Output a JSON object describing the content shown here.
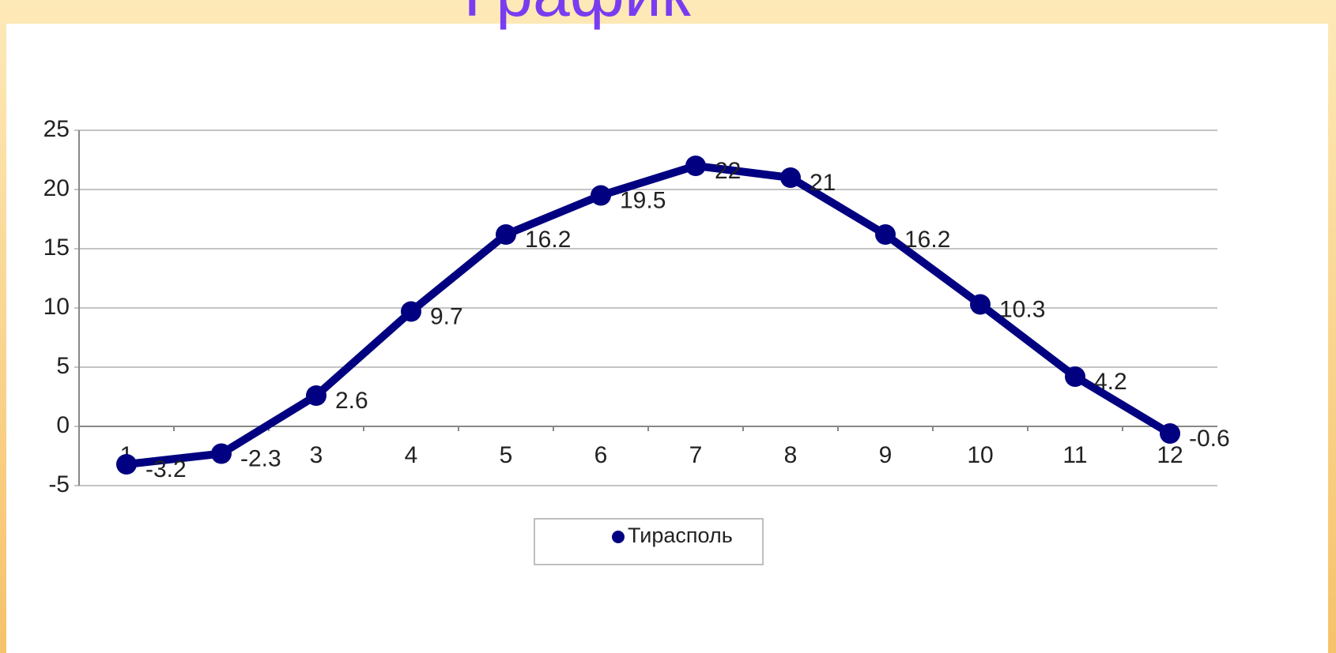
{
  "chart_data": {
    "type": "line",
    "title": "График",
    "categories": [
      "1",
      "2",
      "3",
      "4",
      "5",
      "6",
      "7",
      "8",
      "9",
      "10",
      "11",
      "12"
    ],
    "series": [
      {
        "name": "Тирасполь",
        "color": "#000080",
        "values": [
          -3.2,
          -2.3,
          2.6,
          9.7,
          16.2,
          19.5,
          22,
          21,
          16.2,
          10.3,
          4.2,
          -0.6
        ]
      }
    ],
    "ylim": [
      -5,
      25
    ],
    "yticks": [
      -5,
      0,
      5,
      10,
      15,
      20,
      25
    ],
    "grid": true,
    "legend": "bottom"
  }
}
